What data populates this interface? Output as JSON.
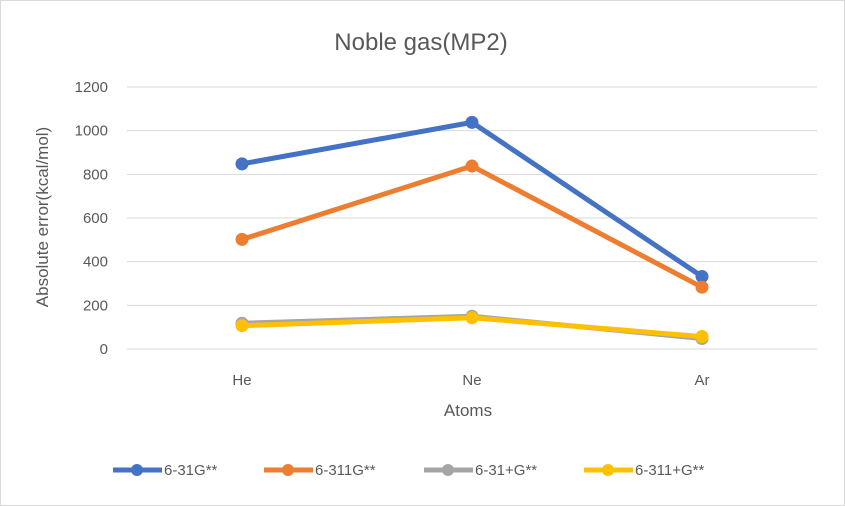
{
  "chart_data": {
    "type": "line",
    "title": "Noble gas(MP2)",
    "xlabel": "Atoms",
    "ylabel": "Absolute error(kcal/mol)",
    "categories": [
      "He",
      "Ne",
      "Ar"
    ],
    "ylim": [
      0,
      1200
    ],
    "yticks": [
      0,
      200,
      400,
      600,
      800,
      1000,
      1200
    ],
    "grid": true,
    "legend": "bottom",
    "series": [
      {
        "name": "6-31G**",
        "color": "#4472C4",
        "values": [
          848,
          1038,
          332
        ]
      },
      {
        "name": "6-311G**",
        "color": "#ED7D31",
        "values": [
          502,
          838,
          283
        ]
      },
      {
        "name": "6-31+G**",
        "color": "#A5A5A5",
        "values": [
          118,
          150,
          48
        ]
      },
      {
        "name": "6-311+G**",
        "color": "#FFC000",
        "values": [
          107,
          143,
          57
        ]
      }
    ]
  }
}
